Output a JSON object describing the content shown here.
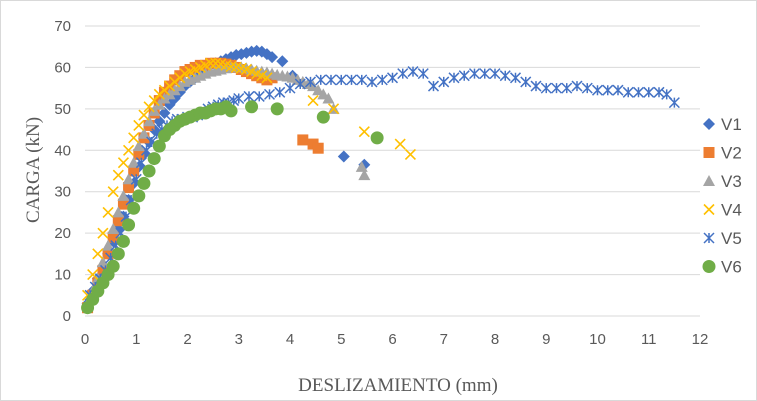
{
  "chart_data": {
    "type": "scatter",
    "title": "",
    "xlabel": "DESLIZAMIENTO  (mm)",
    "ylabel": "CARGA (kN)",
    "xlim": [
      0,
      12
    ],
    "ylim": [
      0,
      70
    ],
    "x_ticks": [
      "0",
      "1",
      "2",
      "3",
      "4",
      "5",
      "6",
      "7",
      "8",
      "9",
      "10",
      "11",
      "12"
    ],
    "y_ticks": [
      "0",
      "10",
      "20",
      "30",
      "40",
      "50",
      "60",
      "70"
    ],
    "grid": "horizontal",
    "legend_position": "right",
    "series": [
      {
        "name": "V1",
        "color": "#4472C4",
        "marker": "diamond",
        "x": [
          0.05,
          0.15,
          0.25,
          0.35,
          0.45,
          0.55,
          0.65,
          0.75,
          0.85,
          0.95,
          1.05,
          1.15,
          1.25,
          1.35,
          1.45,
          1.55,
          1.65,
          1.75,
          1.85,
          1.95,
          2.05,
          2.15,
          2.25,
          2.35,
          2.45,
          2.55,
          2.65,
          2.75,
          2.85,
          2.95,
          3.05,
          3.15,
          3.25,
          3.35,
          3.45,
          3.55,
          3.65,
          3.85,
          4.05,
          5.05,
          5.45
        ],
        "y": [
          3,
          6,
          9,
          12,
          15,
          18,
          21,
          24,
          28,
          32,
          36,
          39,
          42,
          45,
          47,
          49,
          51,
          52.5,
          54,
          55.5,
          56.5,
          57.5,
          58.5,
          59.5,
          60.5,
          61,
          61.5,
          62,
          62.5,
          63,
          63.2,
          63.5,
          63.8,
          64,
          63.8,
          63.2,
          62.5,
          61.5,
          58,
          38.5,
          36.5
        ]
      },
      {
        "name": "V2",
        "color": "#ED7D31",
        "marker": "square",
        "x": [
          0.05,
          0.15,
          0.25,
          0.35,
          0.45,
          0.55,
          0.65,
          0.75,
          0.85,
          0.95,
          1.05,
          1.15,
          1.25,
          1.35,
          1.45,
          1.55,
          1.65,
          1.75,
          1.85,
          1.95,
          2.05,
          2.15,
          2.25,
          2.35,
          2.45,
          2.55,
          2.65,
          2.75,
          2.85,
          2.95,
          3.05,
          3.15,
          3.25,
          3.35,
          3.45,
          3.55,
          3.65,
          4.25,
          4.45,
          4.55
        ],
        "y": [
          2,
          5,
          8,
          11,
          15,
          19,
          23,
          27,
          31,
          35,
          39,
          43,
          46,
          49,
          52,
          54,
          55.5,
          57,
          58,
          59,
          59.5,
          60,
          60.5,
          60.5,
          61,
          61,
          61,
          60.8,
          60.5,
          60,
          59.5,
          59,
          58.5,
          58,
          57.5,
          57,
          57.5,
          42.5,
          41.5,
          40.5
        ]
      },
      {
        "name": "V3",
        "color": "#A5A5A5",
        "marker": "triangle",
        "x": [
          0.05,
          0.15,
          0.25,
          0.35,
          0.45,
          0.55,
          0.65,
          0.75,
          0.85,
          0.95,
          1.05,
          1.15,
          1.25,
          1.35,
          1.45,
          1.55,
          1.65,
          1.75,
          1.85,
          1.95,
          2.05,
          2.15,
          2.25,
          2.35,
          2.45,
          2.55,
          2.65,
          2.75,
          2.85,
          2.95,
          3.05,
          3.15,
          3.25,
          3.35,
          3.45,
          3.55,
          3.65,
          3.75,
          3.85,
          3.95,
          4.05,
          4.15,
          4.25,
          4.35,
          4.45,
          4.55,
          4.65,
          4.75,
          4.85,
          5.4,
          5.45
        ],
        "y": [
          3,
          6,
          9,
          13,
          17,
          21,
          25,
          29,
          33,
          37,
          41,
          44,
          47,
          49.5,
          51,
          52.5,
          53.5,
          54.5,
          55.5,
          56.5,
          57,
          57.5,
          58,
          58.5,
          59,
          59.2,
          59.5,
          59.8,
          60,
          60,
          60,
          59.8,
          59.5,
          59.2,
          59,
          58.8,
          58.5,
          58.2,
          58,
          57.8,
          57.5,
          57,
          56.5,
          56,
          55.5,
          54.5,
          53.5,
          52.5,
          50,
          36,
          34
        ]
      },
      {
        "name": "V4",
        "color": "#FFC000",
        "marker": "x",
        "x": [
          0.05,
          0.15,
          0.25,
          0.35,
          0.45,
          0.55,
          0.65,
          0.75,
          0.85,
          0.95,
          1.05,
          1.15,
          1.25,
          1.35,
          1.45,
          1.55,
          1.65,
          1.75,
          1.85,
          1.95,
          2.05,
          2.15,
          2.25,
          2.35,
          2.45,
          2.55,
          2.65,
          2.75,
          2.85,
          2.95,
          3.05,
          3.15,
          3.25,
          3.35,
          3.45,
          3.55,
          4.45,
          4.85,
          5.45,
          6.15,
          6.35
        ],
        "y": [
          5,
          10,
          15,
          20,
          25,
          30,
          34,
          37,
          40,
          43,
          46,
          48.5,
          50.5,
          52,
          53.5,
          54.5,
          55.5,
          56.5,
          57.5,
          58.5,
          59,
          59.5,
          60,
          60.5,
          61,
          61,
          60.8,
          60.5,
          60.2,
          60,
          59.8,
          59.5,
          59,
          58.5,
          58,
          57.5,
          52,
          50,
          44.5,
          41.5,
          39
        ]
      },
      {
        "name": "V5",
        "color": "#4472C4",
        "marker": "asterisk",
        "x": [
          0.1,
          0.2,
          0.3,
          0.4,
          0.5,
          0.6,
          0.7,
          0.8,
          0.9,
          1.0,
          1.1,
          1.2,
          1.3,
          1.4,
          1.5,
          1.6,
          1.7,
          1.8,
          1.9,
          2.0,
          2.1,
          2.2,
          2.3,
          2.4,
          2.5,
          2.6,
          2.7,
          2.8,
          2.9,
          3.0,
          3.2,
          3.4,
          3.6,
          3.8,
          4.0,
          4.2,
          4.4,
          4.6,
          4.8,
          5.0,
          5.2,
          5.4,
          5.6,
          5.8,
          6.0,
          6.2,
          6.4,
          6.6,
          6.8,
          7.0,
          7.2,
          7.4,
          7.6,
          7.8,
          8.0,
          8.2,
          8.4,
          8.6,
          8.8,
          9.0,
          9.2,
          9.4,
          9.6,
          9.8,
          10.0,
          10.2,
          10.4,
          10.6,
          10.8,
          11.0,
          11.2,
          11.35,
          11.5
        ],
        "y": [
          5,
          7,
          9,
          11,
          14,
          17,
          20,
          24,
          28,
          33,
          37,
          40,
          42,
          44,
          45,
          46,
          47,
          47.5,
          47.5,
          48,
          48,
          48.5,
          49,
          50,
          50.5,
          51,
          51.5,
          51.5,
          52,
          52.5,
          53,
          53,
          53.5,
          54,
          55,
          56,
          56.5,
          57,
          57,
          57,
          57,
          57,
          56.5,
          57,
          57.5,
          58.5,
          59,
          58.5,
          55.5,
          56.5,
          57.5,
          58,
          58.5,
          58.5,
          58.5,
          58,
          57.5,
          56.5,
          55.5,
          55,
          55,
          55,
          55.5,
          55,
          54.5,
          54.5,
          54.5,
          54,
          54,
          54,
          54,
          53.5,
          51.5
        ]
      },
      {
        "name": "V6",
        "color": "#70AD47",
        "marker": "circle",
        "x": [
          0.05,
          0.15,
          0.25,
          0.35,
          0.45,
          0.55,
          0.65,
          0.75,
          0.85,
          0.95,
          1.05,
          1.15,
          1.25,
          1.35,
          1.45,
          1.55,
          1.65,
          1.75,
          1.85,
          1.95,
          2.05,
          2.15,
          2.25,
          2.35,
          2.45,
          2.55,
          2.65,
          2.75,
          2.85,
          3.25,
          3.75,
          4.65,
          5.7
        ],
        "y": [
          2,
          4,
          6,
          8,
          10,
          12,
          15,
          18,
          22,
          26,
          29,
          32,
          35,
          38,
          41,
          43.5,
          45,
          46,
          47,
          47.5,
          48,
          48.5,
          49,
          49,
          49.5,
          50,
          50,
          50.5,
          49.5,
          50.5,
          50,
          48,
          43
        ]
      }
    ]
  }
}
